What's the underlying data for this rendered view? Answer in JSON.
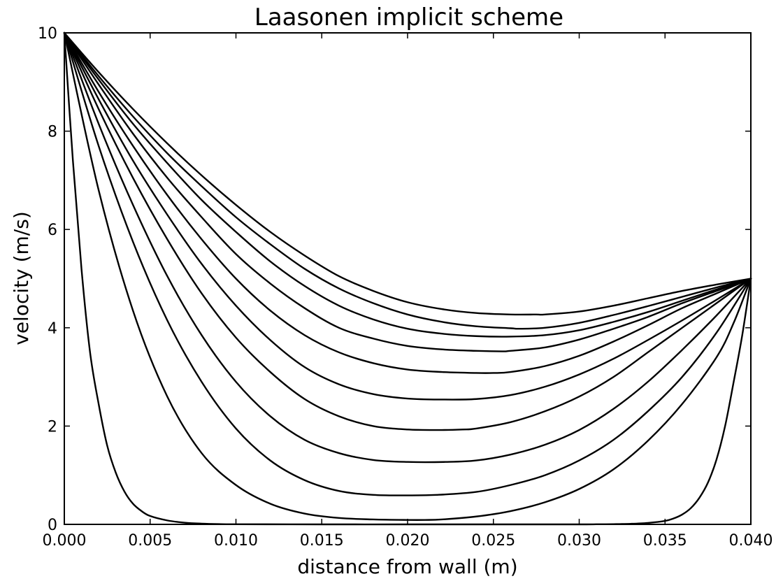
{
  "chart_data": {
    "type": "line",
    "title": "Laasonen implicit scheme",
    "xlabel": "distance from wall (m)",
    "ylabel": "velocity (m/s)",
    "xlim": [
      0.0,
      0.04
    ],
    "ylim": [
      0,
      10
    ],
    "xticks": [
      "0.000",
      "0.005",
      "0.010",
      "0.015",
      "0.020",
      "0.025",
      "0.030",
      "0.035",
      "0.040"
    ],
    "yticks": [
      "0",
      "2",
      "4",
      "6",
      "8",
      "10"
    ],
    "grid": false,
    "line_color": "#000000",
    "boundary_values": {
      "wall_velocity_at_0": 10,
      "velocity_at_0.040": 5
    },
    "series": [
      {
        "x": [
          0.0,
          0.0005,
          0.001,
          0.0015,
          0.002,
          0.0025,
          0.003,
          0.0035,
          0.004,
          0.0045,
          0.005,
          0.006,
          0.007,
          0.008,
          0.009,
          0.01,
          0.015,
          0.02,
          0.025,
          0.03,
          0.031,
          0.032,
          0.033,
          0.034,
          0.035,
          0.0355,
          0.036,
          0.0365,
          0.037,
          0.0375,
          0.038,
          0.0385,
          0.039,
          0.0395,
          0.04
        ],
        "y": [
          10.0,
          7.4,
          5.2,
          3.5,
          2.45,
          1.6,
          1.05,
          0.67,
          0.42,
          0.27,
          0.17,
          0.08,
          0.035,
          0.015,
          0.006,
          0.003,
          0.0,
          0.0,
          0.0,
          0.0,
          0.002,
          0.005,
          0.012,
          0.03,
          0.07,
          0.12,
          0.2,
          0.33,
          0.54,
          0.85,
          1.32,
          2.0,
          2.9,
          3.85,
          5.0
        ]
      },
      {
        "x": [
          0.0,
          0.002,
          0.004,
          0.006,
          0.008,
          0.01,
          0.012,
          0.014,
          0.016,
          0.018,
          0.02,
          0.021,
          0.022,
          0.024,
          0.026,
          0.028,
          0.03,
          0.032,
          0.034,
          0.036,
          0.038,
          0.039,
          0.04
        ],
        "y": [
          10.0,
          6.8,
          4.35,
          2.6,
          1.45,
          0.8,
          0.42,
          0.22,
          0.13,
          0.1,
          0.09,
          0.09,
          0.1,
          0.16,
          0.27,
          0.45,
          0.72,
          1.12,
          1.7,
          2.45,
          3.4,
          4.1,
          5.0
        ]
      },
      {
        "x": [
          0.0,
          0.002,
          0.004,
          0.006,
          0.008,
          0.01,
          0.012,
          0.014,
          0.016,
          0.018,
          0.02,
          0.0217,
          0.024,
          0.026,
          0.028,
          0.03,
          0.032,
          0.034,
          0.036,
          0.038,
          0.04
        ],
        "y": [
          10.0,
          7.7,
          5.75,
          4.15,
          2.9,
          1.95,
          1.3,
          0.9,
          0.68,
          0.6,
          0.59,
          0.6,
          0.66,
          0.8,
          1.0,
          1.3,
          1.72,
          2.3,
          3.0,
          3.9,
          5.0
        ]
      },
      {
        "x": [
          0.0,
          0.002,
          0.004,
          0.006,
          0.008,
          0.01,
          0.012,
          0.014,
          0.016,
          0.018,
          0.02,
          0.0222,
          0.024,
          0.026,
          0.028,
          0.03,
          0.032,
          0.034,
          0.036,
          0.038,
          0.04
        ],
        "y": [
          10.0,
          8.15,
          6.5,
          5.05,
          3.85,
          2.9,
          2.2,
          1.72,
          1.45,
          1.31,
          1.27,
          1.27,
          1.3,
          1.42,
          1.62,
          1.92,
          2.35,
          2.9,
          3.55,
          4.25,
          5.0
        ]
      },
      {
        "x": [
          0.0,
          0.002,
          0.004,
          0.006,
          0.008,
          0.01,
          0.012,
          0.014,
          0.016,
          0.018,
          0.02,
          0.022,
          0.0232,
          0.024,
          0.026,
          0.028,
          0.03,
          0.032,
          0.034,
          0.036,
          0.038,
          0.04
        ],
        "y": [
          10.0,
          8.45,
          7.05,
          5.8,
          4.7,
          3.8,
          3.1,
          2.55,
          2.2,
          2.0,
          1.93,
          1.92,
          1.93,
          1.95,
          2.08,
          2.3,
          2.6,
          3.0,
          3.5,
          4.0,
          4.5,
          5.0
        ]
      },
      {
        "x": [
          0.0,
          0.002,
          0.004,
          0.006,
          0.008,
          0.01,
          0.012,
          0.014,
          0.016,
          0.018,
          0.02,
          0.022,
          0.024,
          0.026,
          0.028,
          0.03,
          0.032,
          0.034,
          0.036,
          0.038,
          0.04
        ],
        "y": [
          10.0,
          8.65,
          7.4,
          6.3,
          5.3,
          4.45,
          3.75,
          3.2,
          2.85,
          2.65,
          2.56,
          2.54,
          2.55,
          2.63,
          2.8,
          3.05,
          3.37,
          3.75,
          4.15,
          4.57,
          5.0
        ]
      },
      {
        "x": [
          0.0,
          0.002,
          0.004,
          0.006,
          0.008,
          0.01,
          0.012,
          0.014,
          0.016,
          0.018,
          0.02,
          0.022,
          0.024,
          0.025,
          0.026,
          0.028,
          0.03,
          0.032,
          0.034,
          0.036,
          0.038,
          0.04
        ],
        "y": [
          10.0,
          8.8,
          7.7,
          6.7,
          5.8,
          5.0,
          4.35,
          3.85,
          3.5,
          3.28,
          3.15,
          3.1,
          3.08,
          3.08,
          3.1,
          3.22,
          3.43,
          3.72,
          4.05,
          4.4,
          4.7,
          5.0
        ]
      },
      {
        "x": [
          0.0,
          0.002,
          0.004,
          0.006,
          0.008,
          0.01,
          0.012,
          0.014,
          0.016,
          0.018,
          0.02,
          0.022,
          0.024,
          0.0255,
          0.026,
          0.028,
          0.03,
          0.032,
          0.034,
          0.036,
          0.038,
          0.04
        ],
        "y": [
          10.0,
          8.95,
          7.95,
          7.05,
          6.25,
          5.5,
          4.9,
          4.4,
          4.0,
          3.78,
          3.63,
          3.56,
          3.53,
          3.52,
          3.53,
          3.6,
          3.76,
          3.98,
          4.22,
          4.5,
          4.75,
          5.0
        ]
      },
      {
        "x": [
          0.0,
          0.002,
          0.004,
          0.006,
          0.008,
          0.01,
          0.012,
          0.014,
          0.016,
          0.018,
          0.02,
          0.022,
          0.024,
          0.026,
          0.028,
          0.03,
          0.032,
          0.034,
          0.036,
          0.038,
          0.04
        ],
        "y": [
          10.0,
          9.05,
          8.15,
          7.35,
          6.6,
          5.95,
          5.35,
          4.85,
          4.45,
          4.17,
          3.98,
          3.88,
          3.83,
          3.82,
          3.85,
          3.95,
          4.12,
          4.32,
          4.55,
          4.78,
          5.0
        ]
      },
      {
        "x": [
          0.0,
          0.002,
          0.004,
          0.006,
          0.008,
          0.01,
          0.012,
          0.014,
          0.016,
          0.018,
          0.02,
          0.022,
          0.024,
          0.026,
          0.0265,
          0.028,
          0.03,
          0.032,
          0.034,
          0.036,
          0.038,
          0.04
        ],
        "y": [
          10.0,
          9.12,
          8.3,
          7.55,
          6.88,
          6.25,
          5.7,
          5.2,
          4.8,
          4.5,
          4.27,
          4.12,
          4.03,
          3.99,
          3.98,
          4.0,
          4.1,
          4.26,
          4.44,
          4.63,
          4.82,
          5.0
        ]
      },
      {
        "x": [
          0.0,
          0.002,
          0.004,
          0.006,
          0.008,
          0.01,
          0.012,
          0.014,
          0.016,
          0.018,
          0.02,
          0.022,
          0.024,
          0.026,
          0.0275,
          0.028,
          0.03,
          0.032,
          0.034,
          0.036,
          0.038,
          0.04
        ],
        "y": [
          10.0,
          9.2,
          8.45,
          7.75,
          7.1,
          6.5,
          5.95,
          5.47,
          5.05,
          4.75,
          4.52,
          4.38,
          4.3,
          4.27,
          4.27,
          4.27,
          4.33,
          4.45,
          4.6,
          4.75,
          4.88,
          5.0
        ]
      }
    ]
  }
}
